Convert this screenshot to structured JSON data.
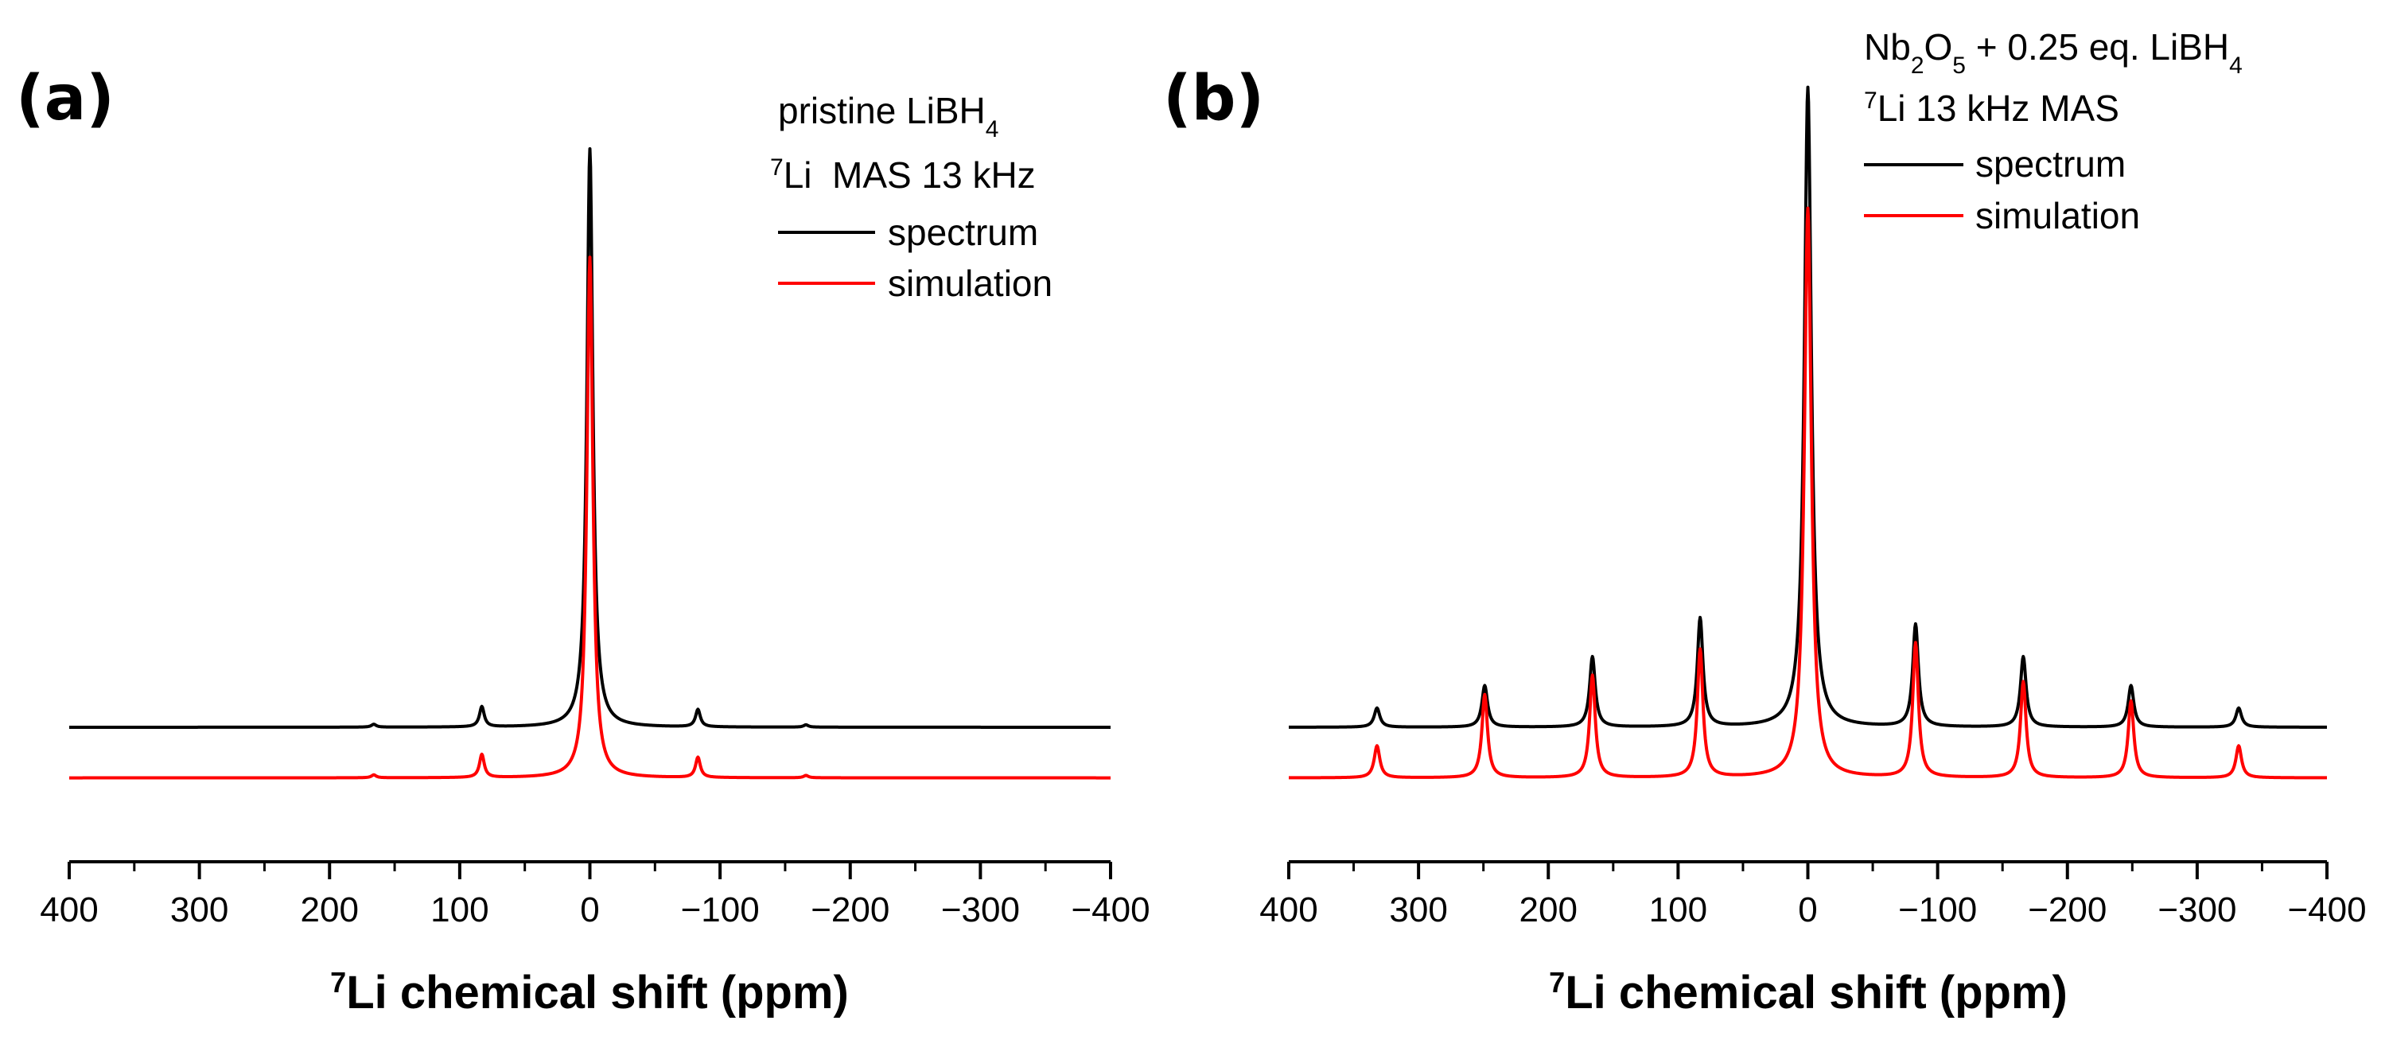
{
  "chart_data": [
    {
      "type": "line",
      "panel_label": "(a)",
      "xlabel": "Li chemical shift (ppm)",
      "xlabel_sup": "7",
      "xlim": [
        400,
        -400
      ],
      "xticks": [
        400,
        300,
        200,
        100,
        0,
        -100,
        -200,
        -300,
        -400
      ],
      "xtick_labels": [
        "400",
        "300",
        "200",
        "100",
        "0",
        "−100",
        "−200",
        "−300",
        "−400"
      ],
      "yaxis_visible": false,
      "legend": {
        "placement": "top-right",
        "title_line1": {
          "text": "pristine LiBH",
          "sub": "4"
        },
        "title_line2": {
          "sup": "7",
          "text": "Li  MAS 13 kHz"
        },
        "entries": [
          "spectrum",
          "simulation"
        ]
      },
      "series": [
        {
          "name": "spectrum",
          "color": "#000000",
          "baseline": 0,
          "peaks": [
            {
              "x": 0,
              "height": 100
            },
            {
              "x": 83,
              "height": 3.5
            },
            {
              "x": -83,
              "height": 3.0
            },
            {
              "x": 166,
              "height": 0.5
            },
            {
              "x": -166,
              "height": 0.4
            }
          ]
        },
        {
          "name": "simulation",
          "color": "#ff0000",
          "baseline": -8,
          "peaks": [
            {
              "x": 0,
              "height": 90
            },
            {
              "x": 83,
              "height": 4.0
            },
            {
              "x": -83,
              "height": 3.5
            },
            {
              "x": 166,
              "height": 0.5
            },
            {
              "x": -166,
              "height": 0.4
            }
          ]
        }
      ]
    },
    {
      "type": "line",
      "panel_label": "(b)",
      "xlabel": "Li chemical shift (ppm)",
      "xlabel_sup": "7",
      "xlim": [
        400,
        -400
      ],
      "xticks": [
        400,
        300,
        200,
        100,
        0,
        -100,
        -200,
        -300,
        -400
      ],
      "xtick_labels": [
        "400",
        "300",
        "200",
        "100",
        "0",
        "−100",
        "−200",
        "−300",
        "−400"
      ],
      "yaxis_visible": false,
      "legend": {
        "placement": "top-right",
        "title_line1": {
          "text": "Nb2O5 + 0.25 eq. LiBH4"
        },
        "title_line2": {
          "sup": "7",
          "text": "Li 13 kHz MAS"
        },
        "entries": [
          "spectrum",
          "simulation"
        ]
      },
      "series": [
        {
          "name": "spectrum",
          "color": "#000000",
          "baseline": 0,
          "peaks": [
            {
              "x": 0,
              "height": 100
            },
            {
              "x": 83,
              "height": 17
            },
            {
              "x": -83,
              "height": 16
            },
            {
              "x": 166,
              "height": 11
            },
            {
              "x": -166,
              "height": 11
            },
            {
              "x": 249,
              "height": 6.5
            },
            {
              "x": -249,
              "height": 6.5
            },
            {
              "x": 332,
              "height": 3.0
            },
            {
              "x": -332,
              "height": 3.0
            }
          ]
        },
        {
          "name": "simulation",
          "color": "#ff0000",
          "baseline": -8,
          "peaks": [
            {
              "x": 0,
              "height": 89
            },
            {
              "x": 83,
              "height": 20
            },
            {
              "x": -83,
              "height": 21
            },
            {
              "x": 166,
              "height": 16
            },
            {
              "x": -166,
              "height": 15
            },
            {
              "x": 249,
              "height": 13
            },
            {
              "x": -249,
              "height": 12
            },
            {
              "x": 332,
              "height": 5.0
            },
            {
              "x": -332,
              "height": 5.0
            }
          ]
        }
      ]
    }
  ],
  "legend_b_title": {
    "part1": "Nb",
    "sub1": "2",
    "part2": "O",
    "sub2": "5",
    "part3": " + 0.25 eq. LiBH",
    "sub3": "4"
  }
}
